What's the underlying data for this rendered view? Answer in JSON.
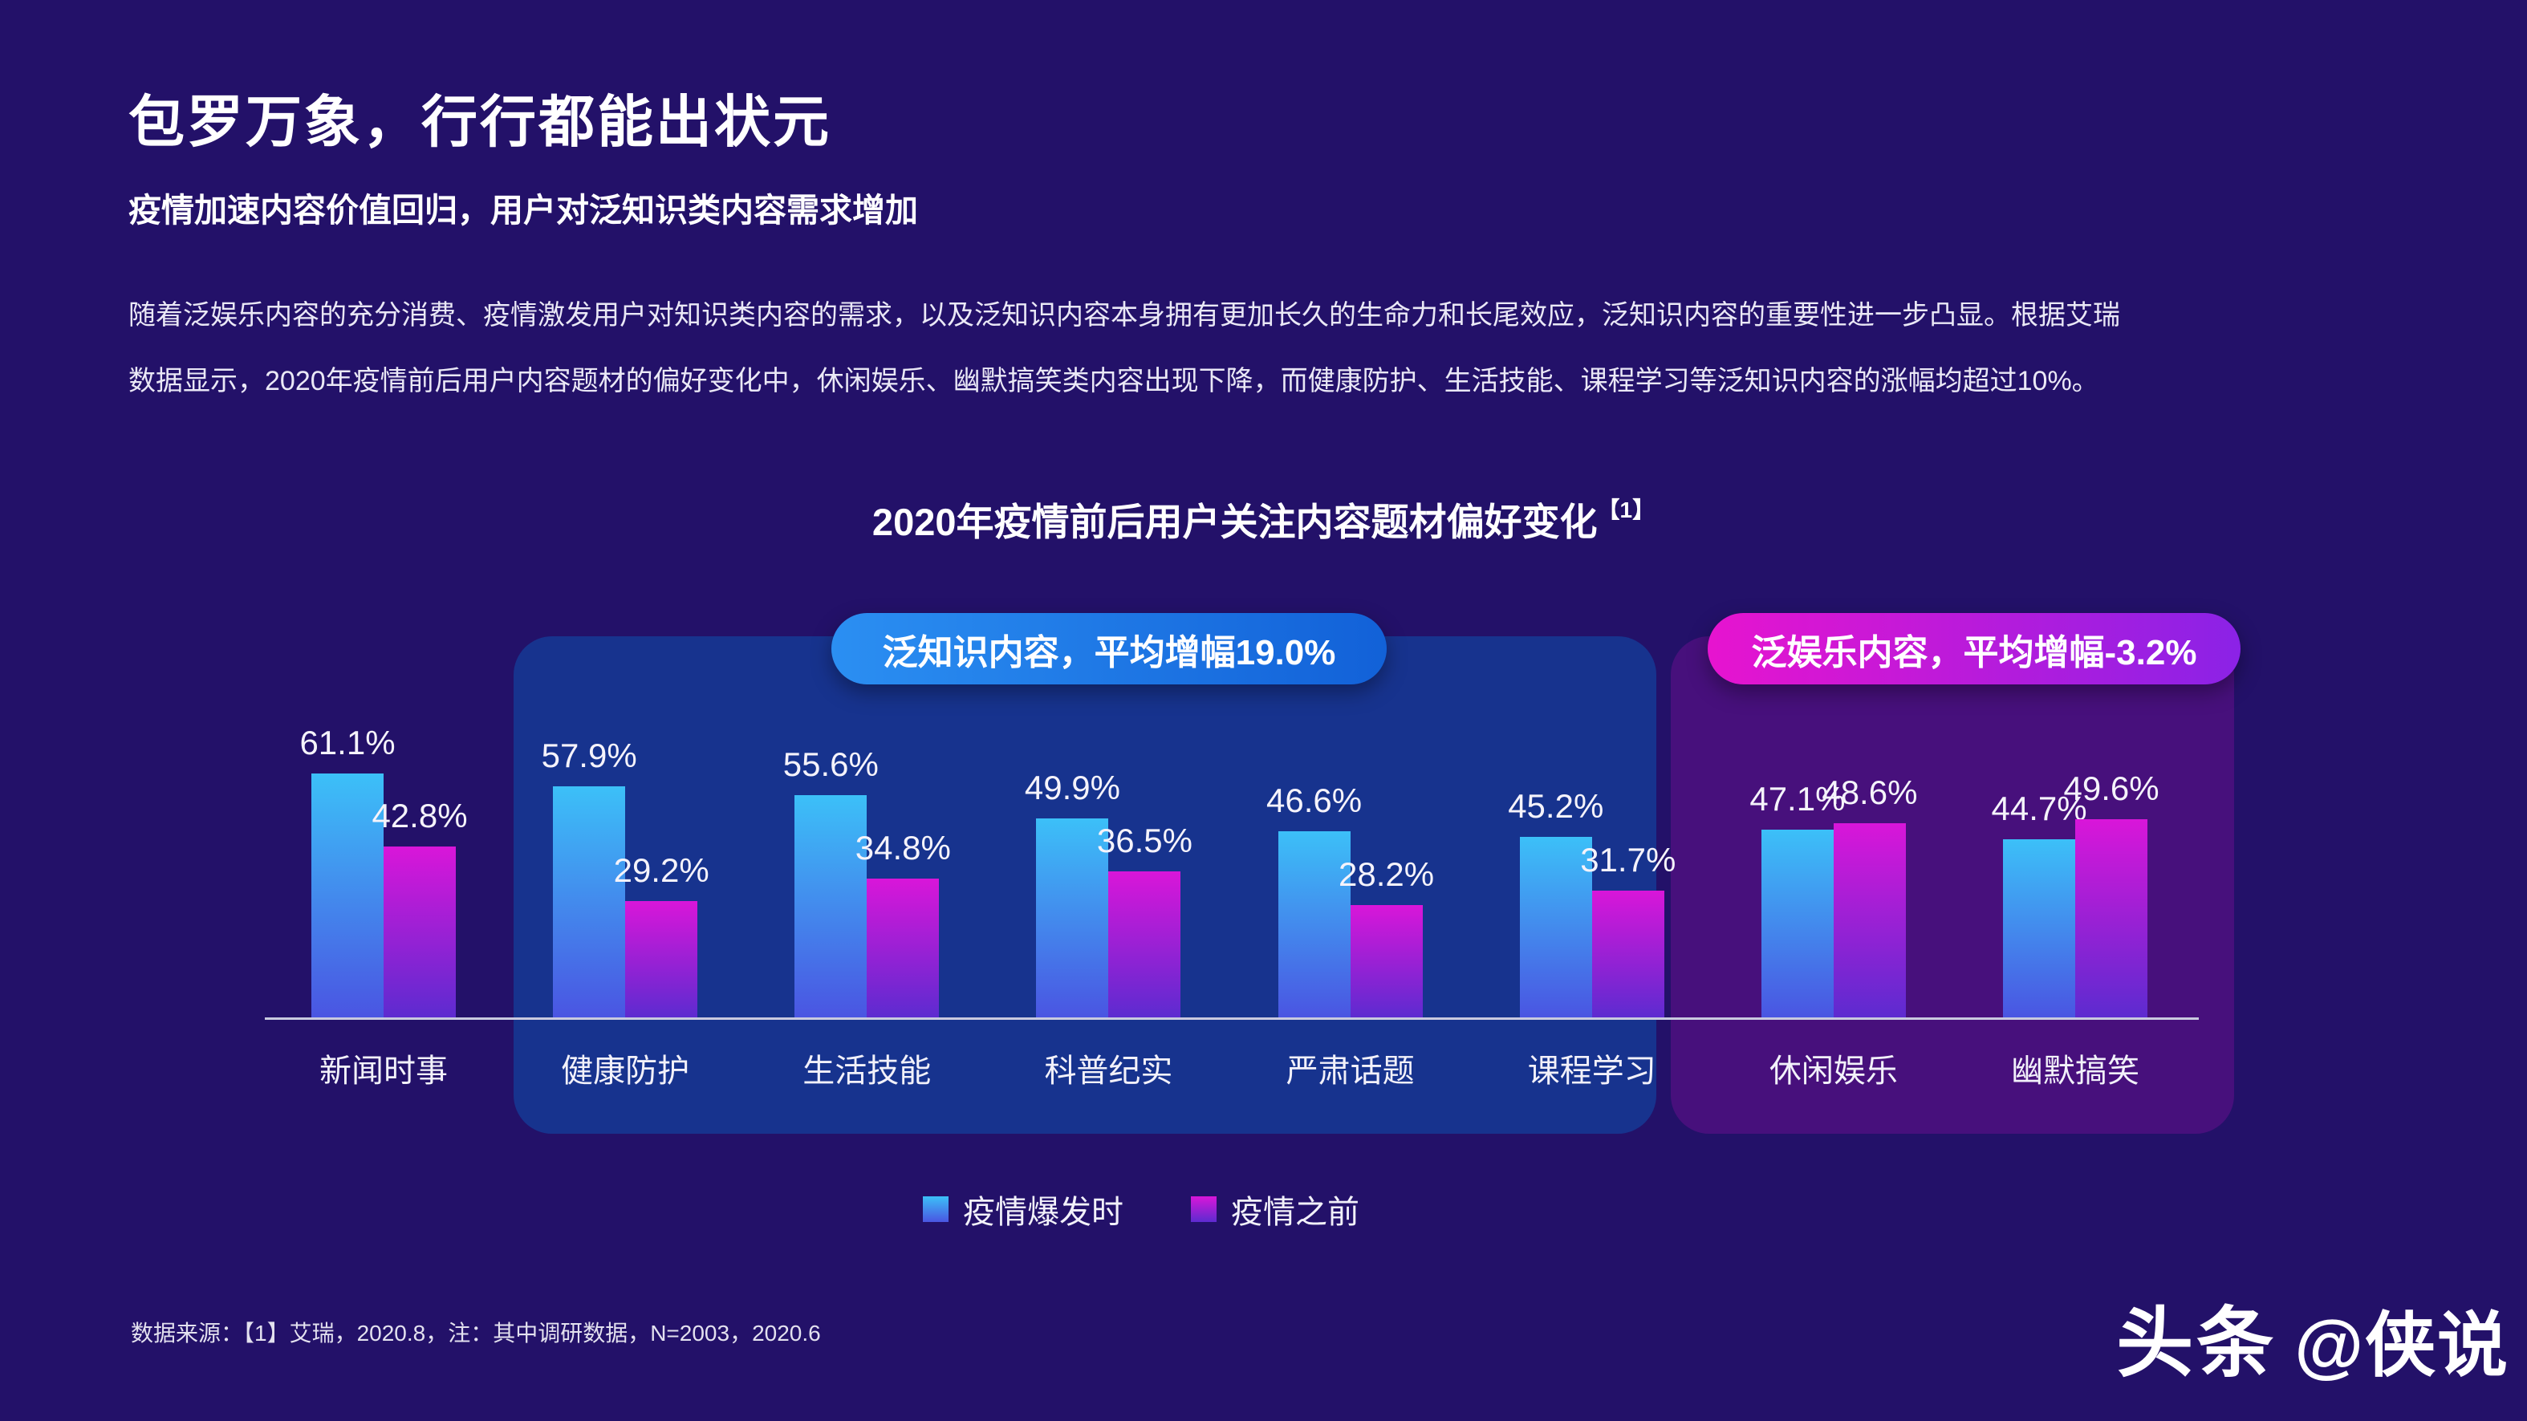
{
  "slide": {
    "title": "包罗万象，行行都能出状元",
    "subtitle": "疫情加速内容价值回归，用户对泛知识类内容需求增加",
    "paragraph_line1": "随着泛娱乐内容的充分消费、疫情激发用户对知识类内容的需求，以及泛知识内容本身拥有更加长久的生命力和长尾效应，泛知识内容的重要性进一步凸显。根据艾瑞",
    "paragraph_line2": "数据显示，2020年疫情前后用户内容题材的偏好变化中，休闲娱乐、幽默搞笑类内容出现下降，而健康防护、生活技能、课程学习等泛知识内容的涨幅均超过10%。",
    "footnote": "数据来源：【1】艾瑞，2020.8，注：其中调研数据，N=2003，2020.6",
    "watermark": {
      "brand": "头条",
      "handle": "@侠说"
    }
  },
  "chart_data": {
    "type": "bar",
    "title": "2020年疫情前后用户关注内容题材偏好变化",
    "title_superscript": "【1】",
    "categories": [
      "新闻时事",
      "健康防护",
      "生活技能",
      "科普纪实",
      "严肃话题",
      "课程学习",
      "休闲娱乐",
      "幽默搞笑"
    ],
    "series": [
      {
        "name": "疫情爆发时",
        "values": [
          61.1,
          57.9,
          55.6,
          49.9,
          46.6,
          45.2,
          47.1,
          44.7
        ]
      },
      {
        "name": "疫情之前",
        "values": [
          42.8,
          29.2,
          34.8,
          36.5,
          28.2,
          31.7,
          48.6,
          49.6
        ]
      }
    ],
    "value_suffix": "%",
    "annotations": [
      {
        "label": "泛知识内容，平均增幅19.0%",
        "covers_categories": [
          "健康防护",
          "生活技能",
          "科普纪实",
          "严肃话题",
          "课程学习"
        ]
      },
      {
        "label": "泛娱乐内容，平均增幅-3.2%",
        "covers_categories": [
          "休闲娱乐",
          "幽默搞笑"
        ]
      }
    ],
    "legend": [
      "疫情爆发时",
      "疫情之前"
    ],
    "legend_position": "bottom-center",
    "ylim": [
      0,
      65
    ],
    "grid": false
  },
  "colors": {
    "bg": "#231169",
    "panel-knowledge": "#17338e",
    "panel-entertainment": "#47107c",
    "pill-knowledge-start": "#2b8ff2",
    "pill-knowledge-end": "#1261d8",
    "pill-entertainment-start": "#e714cf",
    "pill-entertainment-end": "#8b22e6",
    "bar-blue-top": "#3cc0f8",
    "bar-blue-bottom": "#4a55e2",
    "bar-magenta-top": "#d916d9",
    "bar-magenta-bottom": "#5d2bd0",
    "axis": "#c9cadf",
    "text": "#ffffff"
  }
}
